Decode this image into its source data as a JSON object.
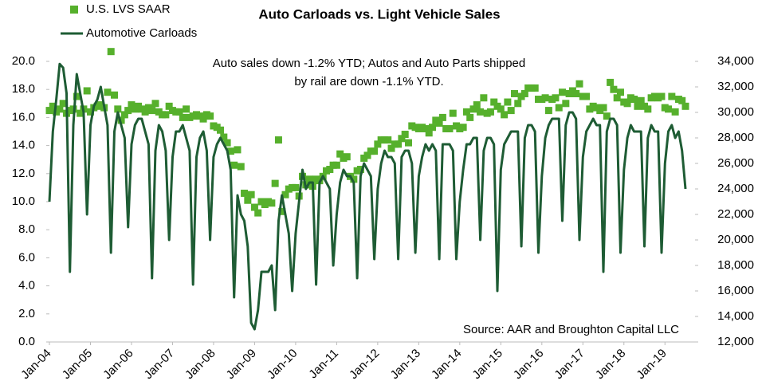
{
  "chart_data": {
    "type": "line",
    "title": "Auto Carloads vs. Light Vehicle Sales",
    "annotations": [
      "Auto sales down -1.2% YTD;  Autos and Auto Parts shipped",
      "by rail are down  -1.1% YTD.",
      "Source: AAR and Broughton Capital LLC"
    ],
    "categories": [
      "Jan-04",
      null,
      null,
      null,
      null,
      null,
      null,
      null,
      null,
      null,
      null,
      null,
      "Jan-05",
      null,
      null,
      null,
      null,
      null,
      null,
      null,
      null,
      null,
      null,
      null,
      "Jan-06",
      null,
      null,
      null,
      null,
      null,
      null,
      null,
      null,
      null,
      null,
      null,
      "Jan-07",
      null,
      null,
      null,
      null,
      null,
      null,
      null,
      null,
      null,
      null,
      null,
      "Jan-08",
      null,
      null,
      null,
      null,
      null,
      null,
      null,
      null,
      null,
      null,
      null,
      "Jan-09",
      null,
      null,
      null,
      null,
      null,
      null,
      null,
      null,
      null,
      null,
      null,
      "Jan-10",
      null,
      null,
      null,
      null,
      null,
      null,
      null,
      null,
      null,
      null,
      null,
      "Jan-11",
      null,
      null,
      null,
      null,
      null,
      null,
      null,
      null,
      null,
      null,
      null,
      "Jan-12",
      null,
      null,
      null,
      null,
      null,
      null,
      null,
      null,
      null,
      null,
      null,
      "Jan-13",
      null,
      null,
      null,
      null,
      null,
      null,
      null,
      null,
      null,
      null,
      null,
      "Jan-14",
      null,
      null,
      null,
      null,
      null,
      null,
      null,
      null,
      null,
      null,
      null,
      "Jan-15",
      null,
      null,
      null,
      null,
      null,
      null,
      null,
      null,
      null,
      null,
      null,
      "Jan-16",
      null,
      null,
      null,
      null,
      null,
      null,
      null,
      null,
      null,
      null,
      null,
      "Jan-17",
      null,
      null,
      null,
      null,
      null,
      null,
      null,
      null,
      null,
      null,
      null,
      "Jan-18",
      null,
      null,
      null,
      null,
      null,
      null,
      null,
      null,
      null,
      null,
      null,
      "Jan-19",
      null,
      null,
      null,
      null,
      null,
      null
    ],
    "series": [
      {
        "name": "U.S. LVS SAAR",
        "type": "marker",
        "axis": "y",
        "color": "#56b02c",
        "values": [
          16.5,
          16.8,
          16.4,
          16.6,
          17.0,
          16.3,
          16.5,
          16.6,
          17.5,
          16.3,
          16.6,
          17.9,
          16.4,
          16.7,
          16.8,
          16.9,
          16.7,
          17.8,
          20.7,
          17.6,
          16.6,
          15.8,
          16.2,
          16.5,
          16.9,
          16.6,
          16.8,
          16.6,
          16.4,
          16.7,
          16.5,
          17.0,
          16.4,
          16.2,
          16.2,
          16.8,
          16.5,
          16.4,
          16.4,
          16.0,
          16.6,
          16.0,
          16.1,
          16.2,
          16.1,
          15.9,
          16.2,
          16.1,
          15.4,
          15.3,
          15.1,
          14.6,
          14.2,
          13.6,
          12.6,
          13.7,
          12.5,
          10.6,
          10.1,
          10.5,
          9.6,
          9.2,
          10.0,
          9.8,
          10.0,
          9.9,
          11.3,
          14.4,
          9.3,
          10.5,
          10.9,
          11.0,
          11.0,
          10.4,
          11.8,
          11.2,
          11.6,
          11.1,
          11.6,
          11.5,
          11.8,
          12.2,
          12.3,
          12.6,
          12.6,
          13.4,
          13.1,
          13.2,
          11.8,
          11.6,
          12.2,
          12.3,
          13.1,
          13.3,
          13.6,
          13.6,
          14.1,
          14.4,
          14.4,
          14.4,
          13.8,
          14.1,
          14.1,
          14.5,
          14.8,
          14.2,
          15.4,
          15.3,
          15.2,
          15.3,
          15.2,
          14.9,
          15.3,
          15.8,
          15.6,
          16.0,
          15.2,
          15.2,
          16.3,
          15.4,
          15.2,
          15.3,
          16.4,
          16.0,
          16.6,
          16.9,
          16.4,
          17.4,
          16.3,
          16.4,
          17.1,
          16.8,
          16.6,
          16.2,
          17.1,
          16.5,
          17.7,
          17.0,
          17.5,
          17.7,
          18.1,
          18.1,
          18.1,
          17.3,
          17.3,
          17.4,
          16.5,
          17.3,
          17.4,
          16.7,
          17.8,
          17.0,
          17.7,
          17.9,
          17.7,
          18.4,
          17.5,
          17.5,
          16.6,
          16.8,
          16.7,
          16.5,
          16.7,
          16.1,
          18.5,
          18.0,
          17.4,
          17.8,
          17.1,
          17.0,
          17.4,
          17.3,
          16.8,
          17.2,
          16.8,
          16.6,
          17.4,
          17.5,
          17.4,
          17.5,
          16.7,
          16.6,
          17.5,
          16.4,
          17.3,
          17.2,
          16.8
        ]
      },
      {
        "name": "Automotive Carloads",
        "type": "line",
        "axis": "y2",
        "color": "#1e5c34",
        "values": [
          23000,
          28500,
          31000,
          33800,
          33500,
          31500,
          17500,
          29000,
          33000,
          31500,
          30000,
          22000,
          29000,
          30500,
          31000,
          32000,
          30500,
          29000,
          19000,
          28500,
          30000,
          29000,
          28000,
          21000,
          27500,
          29000,
          29500,
          29500,
          28500,
          27500,
          17000,
          27000,
          29000,
          28500,
          27000,
          20000,
          26500,
          28500,
          28500,
          29000,
          28000,
          27000,
          16500,
          26500,
          28000,
          28500,
          27000,
          20000,
          26500,
          27500,
          28000,
          27500,
          27000,
          25500,
          15500,
          23500,
          22000,
          21500,
          19500,
          13500,
          13000,
          14500,
          17500,
          17500,
          17500,
          18000,
          14500,
          21500,
          23500,
          22000,
          20500,
          16000,
          20500,
          23000,
          25500,
          24000,
          24500,
          24500,
          16500,
          24500,
          25000,
          24500,
          24000,
          18000,
          22000,
          24500,
          25500,
          25000,
          25000,
          24500,
          17000,
          25000,
          26000,
          25500,
          25000,
          18500,
          24000,
          26000,
          27000,
          26500,
          26500,
          26000,
          18500,
          26500,
          27000,
          27000,
          26000,
          19000,
          25000,
          26500,
          27500,
          27000,
          27500,
          27000,
          18500,
          27500,
          27500,
          27500,
          27000,
          18500,
          23000,
          25500,
          27500,
          27500,
          28000,
          28000,
          20000,
          27000,
          28000,
          28000,
          27500,
          16000,
          25500,
          27500,
          28000,
          28500,
          28500,
          28500,
          19500,
          28000,
          29000,
          29000,
          28500,
          19000,
          25000,
          28000,
          29000,
          29500,
          29500,
          29500,
          21500,
          29000,
          30000,
          30000,
          29500,
          20000,
          26500,
          28500,
          29000,
          29500,
          29000,
          29000,
          17500,
          28500,
          29500,
          29500,
          29000,
          19000,
          25500,
          28000,
          29000,
          28500,
          28500,
          28500,
          19500,
          28000,
          29000,
          28500,
          28500,
          19000,
          26000,
          28500,
          29000,
          28000,
          28500,
          27000,
          24000
        ]
      }
    ],
    "ylim": [
      0,
      20
    ],
    "yticks": [
      {
        "value": 0,
        "label": "0.0"
      },
      {
        "value": 2,
        "label": "2.0"
      },
      {
        "value": 4,
        "label": "4.0"
      },
      {
        "value": 6,
        "label": "6.0"
      },
      {
        "value": 8,
        "label": "8.0"
      },
      {
        "value": 10,
        "label": "10.0"
      },
      {
        "value": 12,
        "label": "12.0"
      },
      {
        "value": 14,
        "label": "14.0"
      },
      {
        "value": 16,
        "label": "16.0"
      },
      {
        "value": 18,
        "label": "18.0"
      },
      {
        "value": 20,
        "label": "20.0"
      }
    ],
    "y2lim": [
      12000,
      34000
    ],
    "y2ticks": [
      {
        "value": 12000,
        "label": "12,000"
      },
      {
        "value": 14000,
        "label": "14,000"
      },
      {
        "value": 16000,
        "label": "16,000"
      },
      {
        "value": 18000,
        "label": "18,000"
      },
      {
        "value": 20000,
        "label": "20,000"
      },
      {
        "value": 22000,
        "label": "22,000"
      },
      {
        "value": 24000,
        "label": "24,000"
      },
      {
        "value": 26000,
        "label": "26,000"
      },
      {
        "value": 28000,
        "label": "28,000"
      },
      {
        "value": 30000,
        "label": "30,000"
      },
      {
        "value": 32000,
        "label": "32,000"
      },
      {
        "value": 34000,
        "label": "34,000"
      }
    ],
    "legend": "top-left"
  }
}
